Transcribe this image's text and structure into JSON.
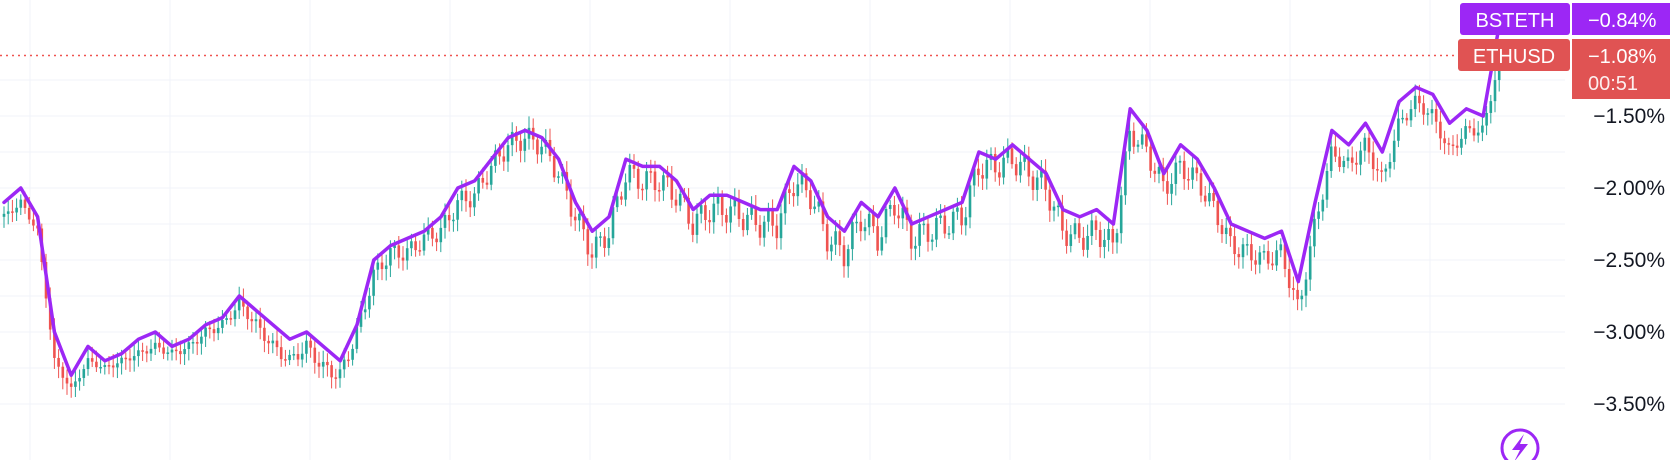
{
  "chart_data": {
    "type": "line",
    "title": "",
    "xlabel": "",
    "ylabel": "",
    "y_unit": "%",
    "y_axis_side": "right",
    "ylim": [
      -3.8,
      -1.0
    ],
    "y_ticks": [
      -1.5,
      -2.0,
      -2.5,
      -3.0,
      -3.5
    ],
    "y_tick_labels": [
      "−1.50%",
      "−2.00%",
      "−2.50%",
      "−3.00%",
      "−3.50%"
    ],
    "grid": true,
    "current_value_line": -1.08,
    "series": [
      {
        "name": "BSTETH",
        "style": "line",
        "color": "#9c27f5",
        "last_value_label": "−0.84%",
        "values": [
          -2.1,
          -2.0,
          -2.2,
          -3.0,
          -3.3,
          -3.1,
          -3.2,
          -3.15,
          -3.05,
          -3.0,
          -3.1,
          -3.05,
          -2.95,
          -2.9,
          -2.75,
          -2.85,
          -2.95,
          -3.05,
          -3.0,
          -3.1,
          -3.2,
          -2.95,
          -2.5,
          -2.4,
          -2.35,
          -2.3,
          -2.2,
          -2.0,
          -1.95,
          -1.8,
          -1.65,
          -1.6,
          -1.65,
          -1.8,
          -2.1,
          -2.3,
          -2.2,
          -1.8,
          -1.85,
          -1.85,
          -1.95,
          -2.15,
          -2.05,
          -2.05,
          -2.1,
          -2.15,
          -2.15,
          -1.85,
          -1.95,
          -2.2,
          -2.3,
          -2.1,
          -2.2,
          -2.0,
          -2.25,
          -2.2,
          -2.15,
          -2.1,
          -1.75,
          -1.8,
          -1.7,
          -1.8,
          -1.9,
          -2.15,
          -2.2,
          -2.15,
          -2.25,
          -1.45,
          -1.6,
          -1.9,
          -1.7,
          -1.8,
          -2.0,
          -2.25,
          -2.3,
          -2.35,
          -2.3,
          -2.65,
          -2.1,
          -1.6,
          -1.7,
          -1.55,
          -1.75,
          -1.4,
          -1.3,
          -1.35,
          -1.55,
          -1.45,
          -1.5,
          -0.84
        ]
      },
      {
        "name": "ETHUSD",
        "style": "candlestick",
        "up_color": "#26a69a",
        "down_color": "#ef5350",
        "last_value_label": "−1.08%",
        "countdown_label": "00:51",
        "values": [
          -2.2,
          -2.1,
          -2.3,
          -3.2,
          -3.4,
          -3.2,
          -3.25,
          -3.2,
          -3.15,
          -3.1,
          -3.15,
          -3.1,
          -3.0,
          -2.95,
          -2.8,
          -2.95,
          -3.1,
          -3.2,
          -3.1,
          -3.25,
          -3.3,
          -3.0,
          -2.6,
          -2.45,
          -2.45,
          -2.35,
          -2.3,
          -2.1,
          -2.05,
          -1.85,
          -1.7,
          -1.65,
          -1.7,
          -1.9,
          -2.2,
          -2.45,
          -2.3,
          -1.9,
          -1.95,
          -1.95,
          -2.05,
          -2.25,
          -2.15,
          -2.15,
          -2.2,
          -2.25,
          -2.25,
          -1.95,
          -2.05,
          -2.35,
          -2.45,
          -2.2,
          -2.35,
          -2.1,
          -2.35,
          -2.3,
          -2.25,
          -2.2,
          -1.85,
          -1.85,
          -1.8,
          -1.9,
          -2.0,
          -2.3,
          -2.35,
          -2.3,
          -2.4,
          -1.6,
          -1.75,
          -2.0,
          -1.85,
          -1.95,
          -2.15,
          -2.4,
          -2.45,
          -2.5,
          -2.45,
          -2.85,
          -2.25,
          -1.75,
          -1.85,
          -1.7,
          -1.95,
          -1.55,
          -1.4,
          -1.5,
          -1.75,
          -1.6,
          -1.6,
          -1.08
        ]
      }
    ]
  },
  "icons": {
    "corner": "lightning-bolt-icon"
  }
}
